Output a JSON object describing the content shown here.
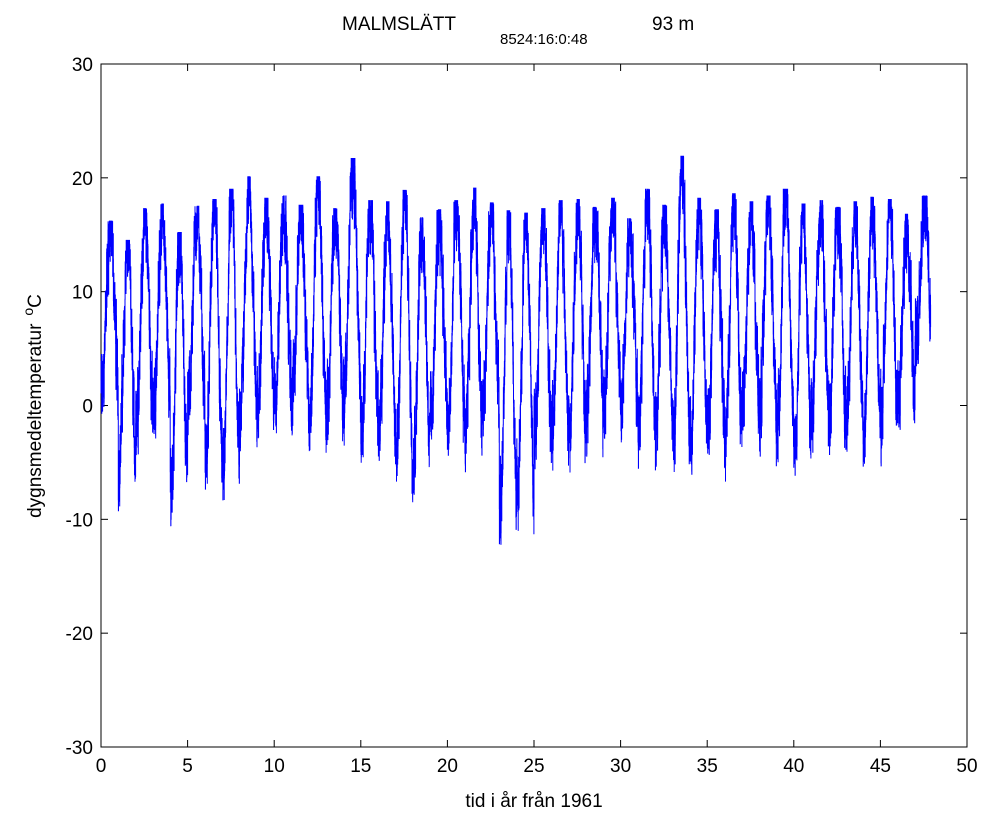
{
  "chart_data": {
    "type": "line",
    "title": {
      "station": "MALMSLÄTT",
      "code": "8524:16:0:48",
      "elevation": "93 m"
    },
    "xlabel": "tid i år från 1961",
    "ylabel": {
      "text": "dygnsmedeltemperatur",
      "unit_superscript": "o",
      "unit": "C"
    },
    "xlim": [
      0,
      50
    ],
    "ylim": [
      -30,
      30
    ],
    "xticks": [
      0,
      5,
      10,
      15,
      20,
      25,
      30,
      35,
      40,
      45,
      50
    ],
    "yticks": [
      -30,
      -20,
      -10,
      0,
      10,
      20,
      30
    ],
    "grid": false,
    "series": [
      {
        "color": "#0000ff",
        "x_start": 0,
        "x_end": 47.9,
        "years": 48,
        "annual_max": [
          16.2,
          14.5,
          17.3,
          17.7,
          15.2,
          17.5,
          18.1,
          19.0,
          20.1,
          18.2,
          18.4,
          17.6,
          20.1,
          17.3,
          21.7,
          18.0,
          17.9,
          18.9,
          16.5,
          17.2,
          18.0,
          19.1,
          17.8,
          17.1,
          16.9,
          17.3,
          18.0,
          18.1,
          17.4,
          18.2,
          16.4,
          19.0,
          17.6,
          21.9,
          18.2,
          17.2,
          18.6,
          17.9,
          18.4,
          19.0,
          17.7,
          18.0,
          17.4,
          17.9,
          18.3,
          18.1,
          16.8,
          18.4
        ],
        "annual_min": [
          -4.3,
          -10.4,
          -6.3,
          -5.8,
          -12.6,
          -5.3,
          -10.4,
          -12.0,
          -6.1,
          -6.0,
          -5.5,
          -4.5,
          -6.9,
          -5.9,
          -4.4,
          -7.5,
          -8.0,
          -9.7,
          -10.0,
          -6.7,
          -7.5,
          -8.5,
          -6.0,
          -14.2,
          -13.2,
          -7.4,
          -8.5,
          -7.5,
          -6.0,
          -5.0,
          -5.3,
          -7.1,
          -7.5,
          -8.7,
          -8.7,
          -7.2,
          -8.5,
          -5.9,
          -6.0,
          -6.9,
          -9.3,
          -5.9,
          -6.2,
          -6.8,
          -7.3,
          -6.1,
          -5.3,
          -0.2
        ]
      }
    ]
  }
}
